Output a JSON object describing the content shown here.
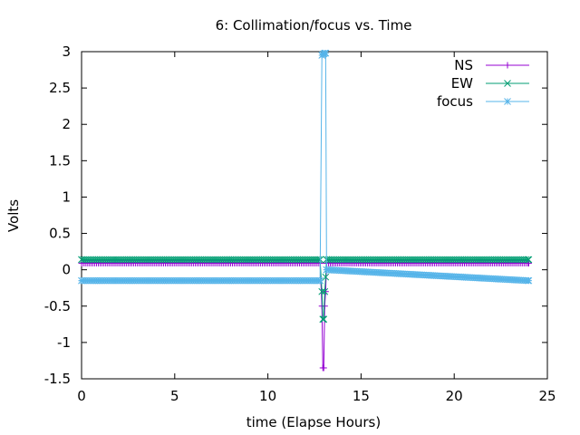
{
  "chart_data": {
    "type": "line",
    "title": "6: Collimation/focus vs. Time",
    "xlabel": "time (Elapse Hours)",
    "ylabel": "Volts",
    "xlim": [
      0,
      25
    ],
    "ylim": [
      -1.5,
      3
    ],
    "x_ticks": [
      0,
      5,
      10,
      15,
      20,
      25
    ],
    "y_ticks": [
      -1.5,
      -1,
      -0.5,
      0,
      0.5,
      1,
      1.5,
      2,
      2.5,
      3
    ],
    "x_tick_labels": [
      "0",
      "5",
      "10",
      "15",
      "20",
      "25"
    ],
    "y_tick_labels": [
      "-1.5",
      "-1",
      "-0.5",
      "0",
      "0.5",
      "1",
      "1.5",
      "2",
      "2.5",
      "3"
    ],
    "grid": false,
    "legend_position": "top-right",
    "series": [
      {
        "name": "NS",
        "color": "#9400d3",
        "marker": "plus",
        "x": [
          0,
          12.8,
          12.9,
          12.95,
          13.0,
          13.05,
          13.1,
          13.15,
          24
        ],
        "y": [
          0.09,
          0.09,
          -0.5,
          -1.35,
          -1.35,
          -0.5,
          -0.3,
          0.09,
          0.09
        ]
      },
      {
        "name": "EW",
        "color": "#009e73",
        "marker": "cross",
        "x": [
          0,
          12.8,
          12.9,
          12.95,
          13.0,
          13.05,
          13.1,
          13.15,
          24
        ],
        "y": [
          0.14,
          0.14,
          -0.3,
          -0.68,
          -0.68,
          -0.3,
          -0.1,
          0.14,
          0.14
        ]
      },
      {
        "name": "focus",
        "color": "#56b4e9",
        "marker": "star",
        "x": [
          0,
          12.8,
          12.9,
          12.95,
          13.0,
          13.05,
          13.1,
          13.15,
          24
        ],
        "y": [
          -0.15,
          -0.15,
          2.95,
          2.96,
          2.97,
          2.98,
          2.98,
          0.0,
          -0.15
        ]
      }
    ]
  }
}
